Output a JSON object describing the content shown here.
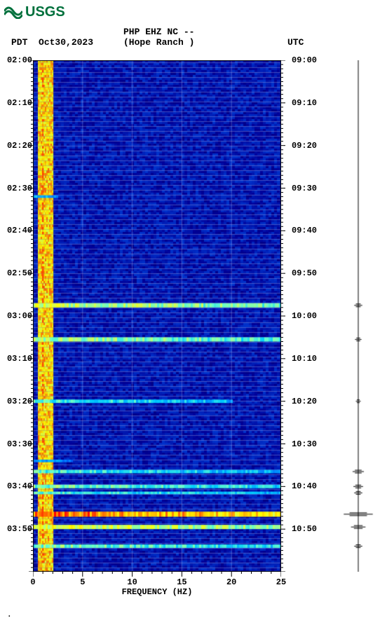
{
  "logo_text": "USGS",
  "header": {
    "left_tz": "PDT",
    "left_date": "Oct30,2023",
    "center_line1": "PHP EHZ NC --",
    "center_line2": "(Hope Ranch )",
    "right_tz": "UTC"
  },
  "spectrogram": {
    "type": "spectrogram",
    "x_axis": {
      "label": "FREQUENCY (HZ)",
      "min": 0,
      "max": 25,
      "ticks": [
        0,
        5,
        10,
        15,
        20,
        25
      ]
    },
    "y_axis_left": {
      "ticks": [
        "02:00",
        "02:10",
        "02:20",
        "02:30",
        "02:40",
        "02:50",
        "03:00",
        "03:10",
        "03:20",
        "03:30",
        "03:40",
        "03:50"
      ],
      "start_min": 0,
      "end_min": 120
    },
    "y_axis_right": {
      "ticks": [
        "09:00",
        "09:10",
        "09:20",
        "09:30",
        "09:40",
        "09:50",
        "10:00",
        "10:10",
        "10:20",
        "10:30",
        "10:40",
        "10:50"
      ]
    },
    "minor_tick_step_min": 1,
    "major_tick_step_min": 10,
    "background_color": "#000099",
    "grid_color": "#b0c4ff",
    "colormap": [
      "#00004d",
      "#000099",
      "#0033cc",
      "#0066ff",
      "#00ccff",
      "#66ffcc",
      "#ccff66",
      "#ffff00",
      "#ffcc00",
      "#ff6600",
      "#ff0000"
    ],
    "persistent_band": {
      "freq_start": 0.5,
      "freq_end": 2.0,
      "intensity": 0.9
    },
    "events": [
      {
        "time_min": 32,
        "intensity": 0.45,
        "width_min": 0.6,
        "freq_end": 2.5
      },
      {
        "time_min": 57.5,
        "intensity": 0.65,
        "width_min": 1.0,
        "freq_end": 25
      },
      {
        "time_min": 65.5,
        "intensity": 0.6,
        "width_min": 1.0,
        "freq_end": 25
      },
      {
        "time_min": 80,
        "intensity": 0.5,
        "width_min": 0.8,
        "freq_end": 20
      },
      {
        "time_min": 94,
        "intensity": 0.4,
        "width_min": 0.6,
        "freq_end": 4
      },
      {
        "time_min": 96.5,
        "intensity": 0.5,
        "width_min": 0.8,
        "freq_end": 25
      },
      {
        "time_min": 100,
        "intensity": 0.55,
        "width_min": 0.8,
        "freq_end": 25
      },
      {
        "time_min": 101.5,
        "intensity": 0.5,
        "width_min": 0.6,
        "freq_end": 25
      },
      {
        "time_min": 106.5,
        "intensity": 0.95,
        "width_min": 1.2,
        "freq_end": 25
      },
      {
        "time_min": 109.5,
        "intensity": 0.7,
        "width_min": 1.0,
        "freq_end": 25
      },
      {
        "time_min": 114,
        "intensity": 0.55,
        "width_min": 0.8,
        "freq_end": 25
      }
    ]
  },
  "amplitude_strip": {
    "axis_color": "#000000",
    "events": [
      {
        "time_min": 57.5,
        "amp": 0.25
      },
      {
        "time_min": 65.5,
        "amp": 0.2
      },
      {
        "time_min": 80,
        "amp": 0.15
      },
      {
        "time_min": 96.5,
        "amp": 0.35
      },
      {
        "time_min": 100,
        "amp": 0.3
      },
      {
        "time_min": 101.5,
        "amp": 0.25
      },
      {
        "time_min": 106.5,
        "amp": 0.9
      },
      {
        "time_min": 109.5,
        "amp": 0.45
      },
      {
        "time_min": 114,
        "amp": 0.25
      }
    ]
  },
  "corner_char": "."
}
